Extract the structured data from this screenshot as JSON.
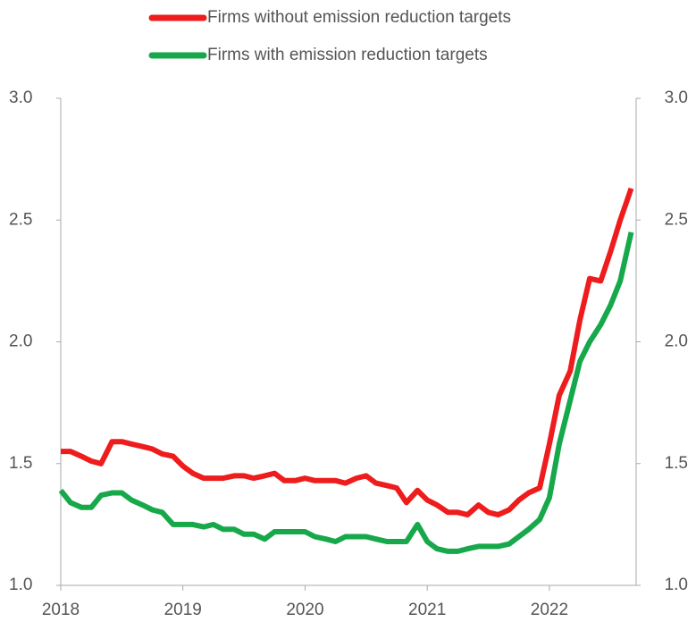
{
  "chart_data": {
    "type": "line",
    "x": [
      2018,
      2018.08,
      2018.17,
      2018.25,
      2018.33,
      2018.42,
      2018.5,
      2018.58,
      2018.67,
      2018.75,
      2018.83,
      2018.92,
      2019,
      2019.08,
      2019.17,
      2019.25,
      2019.33,
      2019.42,
      2019.5,
      2019.58,
      2019.67,
      2019.75,
      2019.83,
      2019.92,
      2020,
      2020.08,
      2020.17,
      2020.25,
      2020.33,
      2020.42,
      2020.5,
      2020.58,
      2020.67,
      2020.75,
      2020.83,
      2020.92,
      2021,
      2021.08,
      2021.17,
      2021.25,
      2021.33,
      2021.42,
      2021.5,
      2021.58,
      2021.67,
      2021.75,
      2021.83,
      2021.92,
      2022,
      2022.08,
      2022.17,
      2022.25,
      2022.33,
      2022.42,
      2022.5,
      2022.58,
      2022.67
    ],
    "series": [
      {
        "name": "Firms without emission reduction targets",
        "color": "#ee1c1c",
        "values": [
          1.55,
          1.55,
          1.53,
          1.51,
          1.5,
          1.59,
          1.59,
          1.58,
          1.57,
          1.56,
          1.54,
          1.53,
          1.49,
          1.46,
          1.44,
          1.44,
          1.44,
          1.45,
          1.45,
          1.44,
          1.45,
          1.46,
          1.43,
          1.43,
          1.44,
          1.43,
          1.43,
          1.43,
          1.42,
          1.44,
          1.45,
          1.42,
          1.41,
          1.4,
          1.34,
          1.39,
          1.35,
          1.33,
          1.3,
          1.3,
          1.29,
          1.33,
          1.3,
          1.29,
          1.31,
          1.35,
          1.38,
          1.4,
          1.58,
          1.78,
          1.88,
          2.09,
          2.26,
          2.25,
          2.37,
          2.5,
          2.63
        ]
      },
      {
        "name": "Firms with emission reduction targets",
        "color": "#16a84a",
        "values": [
          1.39,
          1.34,
          1.32,
          1.32,
          1.37,
          1.38,
          1.38,
          1.35,
          1.33,
          1.31,
          1.3,
          1.25,
          1.25,
          1.25,
          1.24,
          1.25,
          1.23,
          1.23,
          1.21,
          1.21,
          1.19,
          1.22,
          1.22,
          1.22,
          1.22,
          1.2,
          1.19,
          1.18,
          1.2,
          1.2,
          1.2,
          1.19,
          1.18,
          1.18,
          1.18,
          1.25,
          1.18,
          1.15,
          1.14,
          1.14,
          1.15,
          1.16,
          1.16,
          1.16,
          1.17,
          1.2,
          1.23,
          1.27,
          1.36,
          1.58,
          1.76,
          1.92,
          2.0,
          2.07,
          2.15,
          2.25,
          2.45
        ]
      }
    ],
    "xlim": [
      2018,
      2022.71
    ],
    "xticks": [
      2018,
      2019,
      2020,
      2021,
      2022
    ],
    "ylim": [
      1,
      3
    ],
    "yticks": [
      {
        "value": 1,
        "label": "1.0"
      },
      {
        "value": 1.5,
        "label": "1.5"
      },
      {
        "value": 2,
        "label": "2.0"
      },
      {
        "value": 2.5,
        "label": "2.5"
      },
      {
        "value": 3,
        "label": "3.0"
      }
    ],
    "y2lim": [
      1,
      3
    ],
    "y2ticks": [
      {
        "value": 1,
        "label": "1.0"
      },
      {
        "value": 1.5,
        "label": "1.5"
      },
      {
        "value": 2,
        "label": "2.0"
      },
      {
        "value": 2.5,
        "label": "2.5"
      },
      {
        "value": 3,
        "label": "3.0"
      }
    ],
    "legend": "top"
  }
}
